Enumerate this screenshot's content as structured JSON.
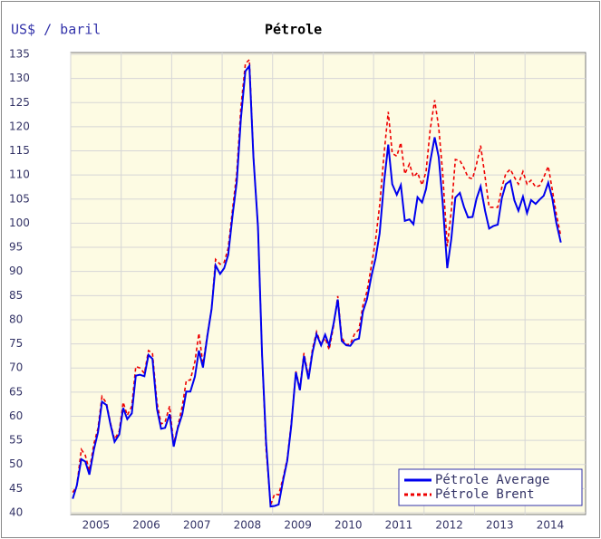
{
  "chart_data": {
    "type": "line",
    "title": "Pétrole",
    "y_label": "US$ / baril",
    "x": [
      2005.04,
      2005.12,
      2005.21,
      2005.29,
      2005.37,
      2005.46,
      2005.54,
      2005.62,
      2005.71,
      2005.79,
      2005.87,
      2005.96,
      2006.04,
      2006.12,
      2006.21,
      2006.29,
      2006.37,
      2006.46,
      2006.54,
      2006.62,
      2006.71,
      2006.79,
      2006.87,
      2006.96,
      2007.04,
      2007.12,
      2007.21,
      2007.29,
      2007.37,
      2007.46,
      2007.54,
      2007.62,
      2007.71,
      2007.79,
      2007.87,
      2007.96,
      2008.04,
      2008.12,
      2008.21,
      2008.29,
      2008.37,
      2008.46,
      2008.54,
      2008.62,
      2008.71,
      2008.79,
      2008.87,
      2008.96,
      2009.04,
      2009.12,
      2009.21,
      2009.29,
      2009.37,
      2009.46,
      2009.54,
      2009.62,
      2009.71,
      2009.79,
      2009.87,
      2009.96,
      2010.04,
      2010.12,
      2010.21,
      2010.29,
      2010.37,
      2010.46,
      2010.54,
      2010.62,
      2010.71,
      2010.79,
      2010.87,
      2010.96,
      2011.04,
      2011.12,
      2011.21,
      2011.29,
      2011.37,
      2011.46,
      2011.54,
      2011.62,
      2011.71,
      2011.79,
      2011.87,
      2011.96,
      2012.04,
      2012.12,
      2012.21,
      2012.29,
      2012.37,
      2012.46,
      2012.54,
      2012.62,
      2012.71,
      2012.79,
      2012.87,
      2012.96,
      2013.04,
      2013.12,
      2013.21,
      2013.29,
      2013.37,
      2013.46,
      2013.54,
      2013.62,
      2013.71,
      2013.79,
      2013.87,
      2013.96,
      2014.04,
      2014.12,
      2014.21,
      2014.29,
      2014.37,
      2014.46,
      2014.54,
      2014.62,
      2014.71
    ],
    "series": [
      {
        "name": "Pétrole Average",
        "color": "#0000ee",
        "dash": false,
        "values": [
          42.9,
          45.6,
          51.1,
          50.6,
          47.9,
          53.1,
          56.7,
          63.0,
          62.3,
          58.2,
          54.7,
          56.2,
          61.7,
          59.4,
          60.6,
          68.4,
          68.6,
          68.3,
          72.7,
          71.9,
          61.5,
          57.4,
          57.6,
          60.4,
          53.7,
          57.5,
          60.4,
          65.1,
          65.1,
          68.2,
          73.6,
          70.1,
          76.8,
          82.2,
          91.3,
          89.5,
          90.7,
          93.4,
          102.0,
          108.6,
          121.6,
          131.5,
          132.6,
          113.6,
          99.2,
          72.8,
          54.7,
          41.3,
          41.4,
          41.7,
          46.8,
          50.8,
          58.0,
          69.1,
          65.4,
          72.5,
          67.7,
          73.2,
          77.0,
          74.7,
          76.9,
          74.7,
          79.3,
          84.2,
          75.6,
          74.7,
          74.6,
          75.8,
          76.1,
          81.7,
          84.3,
          89.2,
          92.7,
          97.9,
          108.7,
          116.3,
          108.1,
          105.9,
          107.9,
          100.5,
          100.8,
          99.8,
          105.4,
          104.3,
          107.1,
          112.7,
          117.8,
          113.7,
          104.1,
          90.7,
          96.8,
          105.3,
          106.3,
          103.4,
          101.2,
          101.3,
          105.1,
          107.6,
          102.5,
          98.9,
          99.4,
          99.7,
          105.2,
          108.1,
          108.8,
          104.7,
          102.6,
          105.5,
          102.1,
          104.8,
          104.0,
          104.9,
          105.7,
          108.4,
          105.2,
          100.1,
          96.0
        ]
      },
      {
        "name": "Pétrole Brent",
        "color": "#ee0000",
        "dash": true,
        "values": [
          44.2,
          45.5,
          53.1,
          51.9,
          48.7,
          54.3,
          57.5,
          64.1,
          62.7,
          58.5,
          55.2,
          56.9,
          62.9,
          60.2,
          62.1,
          70.3,
          70.0,
          68.9,
          73.6,
          73.1,
          62.8,
          58.4,
          58.8,
          62.1,
          54.3,
          57.8,
          62.1,
          67.4,
          67.5,
          71.3,
          77.2,
          70.8,
          77.1,
          82.3,
          92.5,
          91.5,
          91.9,
          94.8,
          103.3,
          110.4,
          123.9,
          133.1,
          133.9,
          113.9,
          99.1,
          72.8,
          53.2,
          41.6,
          43.9,
          43.7,
          47.3,
          51.2,
          58.6,
          69.3,
          65.8,
          73.1,
          68.2,
          73.9,
          77.5,
          74.9,
          76.2,
          73.8,
          78.8,
          84.9,
          76.3,
          74.8,
          75.0,
          77.0,
          78.0,
          83.0,
          85.9,
          91.4,
          96.5,
          103.7,
          114.6,
          123.1,
          114.5,
          113.9,
          116.7,
          110.2,
          112.3,
          109.6,
          110.5,
          107.9,
          110.7,
          119.3,
          125.5,
          119.8,
          110.3,
          95.2,
          102.6,
          113.2,
          113.0,
          111.5,
          109.5,
          109.2,
          112.3,
          116.1,
          109.5,
          103.3,
          103.3,
          103.3,
          107.4,
          110.3,
          111.2,
          109.5,
          108.1,
          110.7,
          108.1,
          108.9,
          107.5,
          107.8,
          109.5,
          111.8,
          107.0,
          101.9,
          97.3
        ]
      }
    ],
    "xlim": [
      2005,
      2015.2
    ],
    "xticks": [
      2005,
      2006,
      2007,
      2008,
      2009,
      2010,
      2011,
      2012,
      2013,
      2014
    ],
    "ylim": [
      40,
      135
    ],
    "yticks": [
      40,
      45,
      50,
      55,
      60,
      65,
      70,
      75,
      80,
      85,
      90,
      95,
      100,
      105,
      110,
      115,
      120,
      125,
      130,
      135
    ],
    "grid": true,
    "legend": "lower right"
  }
}
